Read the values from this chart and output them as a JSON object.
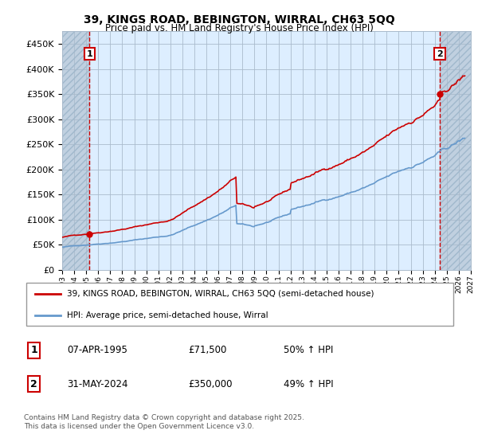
{
  "title": "39, KINGS ROAD, BEBINGTON, WIRRAL, CH63 5QQ",
  "subtitle": "Price paid vs. HM Land Registry's House Price Index (HPI)",
  "ylim": [
    0,
    475000
  ],
  "yticks": [
    0,
    50000,
    100000,
    150000,
    200000,
    250000,
    300000,
    350000,
    400000,
    450000
  ],
  "bg_color": "#ddeeff",
  "red_line_color": "#cc0000",
  "blue_line_color": "#6699cc",
  "transaction1": {
    "date": "07-APR-1995",
    "price": 71500,
    "hpi_change": "50% ↑ HPI",
    "x_year": 1995.27
  },
  "transaction2": {
    "date": "31-MAY-2024",
    "price": 350000,
    "hpi_change": "49% ↑ HPI",
    "x_year": 2024.42
  },
  "legend_red": "39, KINGS ROAD, BEBINGTON, WIRRAL, CH63 5QQ (semi-detached house)",
  "legend_blue": "HPI: Average price, semi-detached house, Wirral",
  "footer1": "Contains HM Land Registry data © Crown copyright and database right 2025.",
  "footer2": "This data is licensed under the Open Government Licence v3.0.",
  "xmin": 1993,
  "xmax": 2027,
  "n_points": 402
}
